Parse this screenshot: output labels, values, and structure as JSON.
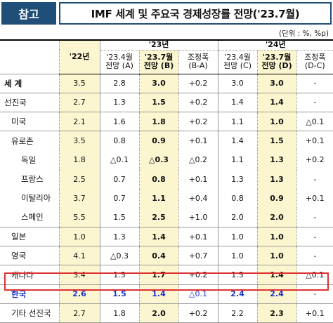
{
  "header": {
    "tag": "참고",
    "title": "IMF 세계 및 주요국 경제성장률 전망('23.7월)"
  },
  "unit_note": "(단위 : %, %p)",
  "columns": {
    "y22": "'22년",
    "y23": "'23년",
    "y24": "'24년",
    "a": "'23.4월\n전망 (A)",
    "b": "'23.7월\n전망 (B)",
    "ba": "조정폭\n(B-A)",
    "c": "'23.4월\n전망 (C)",
    "d": "'23.7월\n전망 (D)",
    "dc": "조정폭\n(D-C)"
  },
  "rows": [
    {
      "name": "세   계",
      "indent": 0,
      "y22": "3.5",
      "a": "2.8",
      "b": "3.0",
      "ba": "+0.2",
      "c": "3.0",
      "d": "3.0",
      "dc": "-",
      "bold_name": true
    },
    {
      "name": "선진국",
      "indent": 0,
      "y22": "2.7",
      "a": "1.3",
      "b": "1.5",
      "ba": "+0.2",
      "c": "1.4",
      "d": "1.4",
      "dc": "-"
    },
    {
      "name": "미국",
      "indent": 1,
      "y22": "2.1",
      "a": "1.6",
      "b": "1.8",
      "ba": "+0.2",
      "c": "1.1",
      "d": "1.0",
      "dc": "△0.1"
    },
    {
      "name": "유로존",
      "indent": 1,
      "y22": "3.5",
      "a": "0.8",
      "b": "0.9",
      "ba": "+0.1",
      "c": "1.4",
      "d": "1.5",
      "dc": "+0.1"
    },
    {
      "name": "독일",
      "indent": 2,
      "y22": "1.8",
      "a": "△0.1",
      "b": "△0.3",
      "ba": "△0.2",
      "c": "1.1",
      "d": "1.3",
      "dc": "+0.2"
    },
    {
      "name": "프랑스",
      "indent": 2,
      "y22": "2.5",
      "a": "0.7",
      "b": "0.8",
      "ba": "+0.1",
      "c": "1.3",
      "d": "1.3",
      "dc": "-"
    },
    {
      "name": "이탈리아",
      "indent": 2,
      "y22": "3.7",
      "a": "0.7",
      "b": "1.1",
      "ba": "+0.4",
      "c": "0.8",
      "d": "0.9",
      "dc": "+0.1"
    },
    {
      "name": "스페인",
      "indent": 2,
      "y22": "5.5",
      "a": "1.5",
      "b": "2.5",
      "ba": "+1.0",
      "c": "2.0",
      "d": "2.0",
      "dc": "-"
    },
    {
      "name": "일본",
      "indent": 1,
      "y22": "1.0",
      "a": "1.3",
      "b": "1.4",
      "ba": "+0.1",
      "c": "1.0",
      "d": "1.0",
      "dc": "-"
    },
    {
      "name": "영국",
      "indent": 1,
      "y22": "4.1",
      "a": "△0.3",
      "b": "0.4",
      "ba": "+0.7",
      "c": "1.0",
      "d": "1.0",
      "dc": "-"
    },
    {
      "name": "캐나다",
      "indent": 1,
      "y22": "3.4",
      "a": "1.5",
      "b": "1.7",
      "ba": "+0.2",
      "c": "1.5",
      "d": "1.4",
      "dc": "△0.1"
    },
    {
      "name": "한국",
      "indent": 1,
      "y22": "2.6",
      "a": "1.5",
      "b": "1.4",
      "ba": "△0.1",
      "c": "2.4",
      "d": "2.4",
      "dc": "-",
      "highlight": true
    },
    {
      "name": "기타 선진국",
      "indent": 1,
      "y22": "2.7",
      "a": "1.8",
      "b": "2.0",
      "ba": "+0.2",
      "c": "2.2",
      "d": "2.3",
      "dc": "+0.1"
    }
  ],
  "colors": {
    "navy": "#1f4e79",
    "highlight_border": "#e03030",
    "korea_text": "#1a33c8",
    "cell_fill": "#fbf6cf"
  }
}
